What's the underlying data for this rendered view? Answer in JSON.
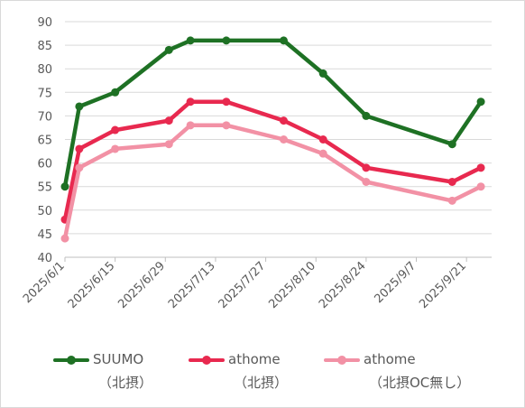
{
  "chart_data": {
    "type": "line",
    "title": "",
    "xlabel": "",
    "ylabel": "",
    "ylim": [
      40,
      90
    ],
    "y_ticks": [
      40,
      45,
      50,
      55,
      60,
      65,
      70,
      75,
      80,
      85,
      90
    ],
    "x_ticks": [
      "2025/6/1",
      "2025/6/15",
      "2025/6/29",
      "2025/7/13",
      "2025/7/27",
      "2025/8/10",
      "2025/8/24",
      "2025/9/7",
      "2025/9/21"
    ],
    "xlim": [
      "2025/6/1",
      "2025/9/28"
    ],
    "grid": true,
    "legend_position": "bottom",
    "series": [
      {
        "name": "SUUMO",
        "name_line2": "（北摂）",
        "color": "#1e7124",
        "points": [
          {
            "x": "2025/6/1",
            "y": 55
          },
          {
            "x": "2025/6/5",
            "y": 72
          },
          {
            "x": "2025/6/15",
            "y": 75
          },
          {
            "x": "2025/6/30",
            "y": 84
          },
          {
            "x": "2025/7/6",
            "y": 86
          },
          {
            "x": "2025/7/16",
            "y": 86
          },
          {
            "x": "2025/8/1",
            "y": 86
          },
          {
            "x": "2025/8/12",
            "y": 79
          },
          {
            "x": "2025/8/24",
            "y": 70
          },
          {
            "x": "2025/9/17",
            "y": 64
          },
          {
            "x": "2025/9/25",
            "y": 73
          }
        ]
      },
      {
        "name": "athome",
        "name_line2": "（北摂）",
        "color": "#e8294f",
        "points": [
          {
            "x": "2025/6/1",
            "y": 48
          },
          {
            "x": "2025/6/5",
            "y": 63
          },
          {
            "x": "2025/6/15",
            "y": 67
          },
          {
            "x": "2025/6/30",
            "y": 69
          },
          {
            "x": "2025/7/6",
            "y": 73
          },
          {
            "x": "2025/7/16",
            "y": 73
          },
          {
            "x": "2025/8/1",
            "y": 69
          },
          {
            "x": "2025/8/12",
            "y": 65
          },
          {
            "x": "2025/8/24",
            "y": 59
          },
          {
            "x": "2025/9/17",
            "y": 56
          },
          {
            "x": "2025/9/25",
            "y": 59
          }
        ]
      },
      {
        "name": "athome",
        "name_line2": "（北摂OC無し）",
        "color": "#f291a5",
        "points": [
          {
            "x": "2025/6/1",
            "y": 44
          },
          {
            "x": "2025/6/5",
            "y": 59
          },
          {
            "x": "2025/6/15",
            "y": 63
          },
          {
            "x": "2025/6/30",
            "y": 64
          },
          {
            "x": "2025/7/6",
            "y": 68
          },
          {
            "x": "2025/7/16",
            "y": 68
          },
          {
            "x": "2025/8/1",
            "y": 65
          },
          {
            "x": "2025/8/12",
            "y": 62
          },
          {
            "x": "2025/8/24",
            "y": 56
          },
          {
            "x": "2025/9/17",
            "y": 52
          },
          {
            "x": "2025/9/25",
            "y": 55
          }
        ]
      }
    ]
  }
}
